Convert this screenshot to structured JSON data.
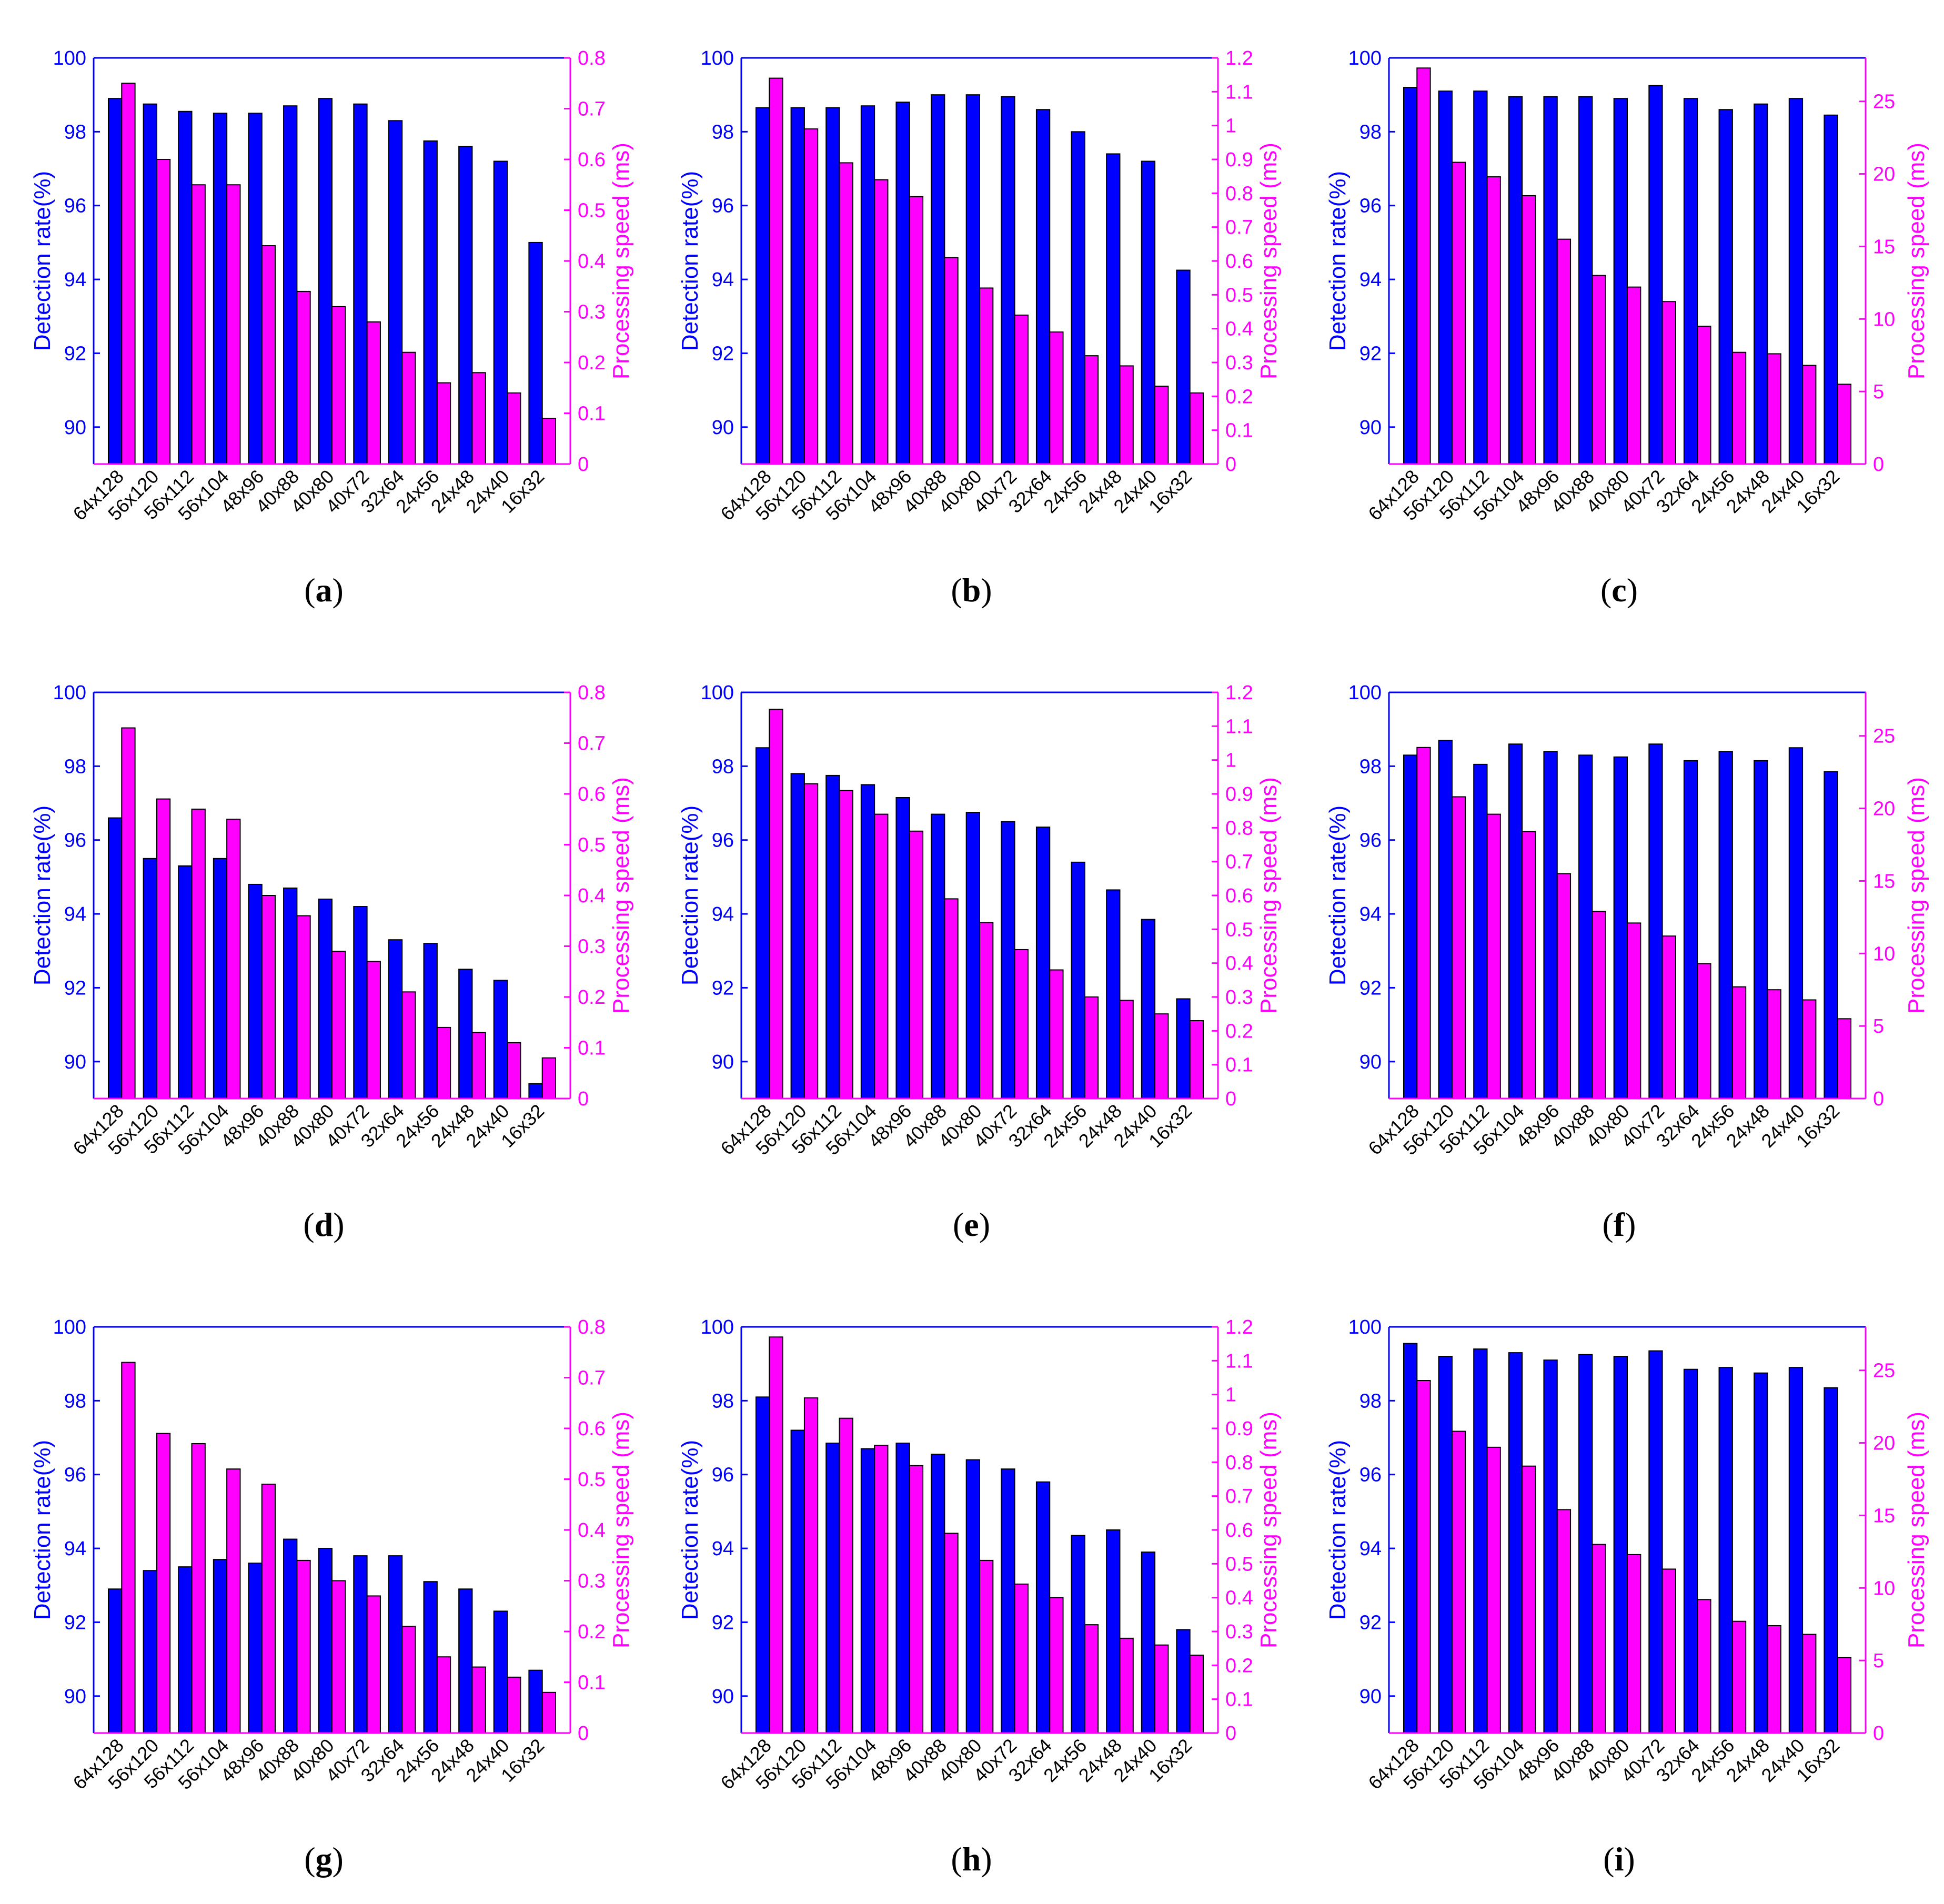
{
  "colors": {
    "detection": "#0000ff",
    "speed": "#ff00ff",
    "axis_left": "#0000ff",
    "axis_right": "#ff00ff"
  },
  "chart_data": [
    {
      "id": "a",
      "type": "bar",
      "panel_label": "a",
      "categories": [
        "64x128",
        "56x120",
        "56x112",
        "56x104",
        "48x96",
        "40x88",
        "40x80",
        "40x72",
        "32x64",
        "24x56",
        "24x48",
        "24x40",
        "16x32"
      ],
      "ylabel": "Detection rate(%)",
      "y2label": "Processing speed (ms)",
      "ylim": [
        89,
        100
      ],
      "y2lim": [
        0,
        0.8
      ],
      "yticks": [
        90,
        92,
        94,
        96,
        98,
        100
      ],
      "y2ticks": [
        0,
        0.1,
        0.2,
        0.3,
        0.4,
        0.5,
        0.6,
        0.7,
        0.8
      ],
      "series": [
        {
          "name": "Detection rate",
          "axis": "left",
          "values": [
            98.9,
            98.75,
            98.55,
            98.5,
            98.5,
            98.7,
            98.9,
            98.75,
            98.3,
            97.75,
            97.6,
            97.2,
            95.0
          ]
        },
        {
          "name": "Processing speed",
          "axis": "right",
          "values": [
            0.75,
            0.6,
            0.55,
            0.55,
            0.43,
            0.34,
            0.31,
            0.28,
            0.22,
            0.16,
            0.18,
            0.14,
            0.09
          ]
        }
      ]
    },
    {
      "id": "b",
      "type": "bar",
      "panel_label": "b",
      "categories": [
        "64x128",
        "56x120",
        "56x112",
        "56x104",
        "48x96",
        "40x88",
        "40x80",
        "40x72",
        "32x64",
        "24x56",
        "24x48",
        "24x40",
        "16x32"
      ],
      "ylabel": "Detection rate(%)",
      "y2label": "Processing speed (ms)",
      "ylim": [
        89,
        100
      ],
      "y2lim": [
        0,
        1.2
      ],
      "yticks": [
        90,
        92,
        94,
        96,
        98,
        100
      ],
      "y2ticks": [
        0,
        0.1,
        0.2,
        0.3,
        0.4,
        0.5,
        0.6,
        0.7,
        0.8,
        0.9,
        1,
        1.1,
        1.2
      ],
      "series": [
        {
          "name": "Detection rate",
          "axis": "left",
          "values": [
            98.65,
            98.65,
            98.65,
            98.7,
            98.8,
            99.0,
            99.0,
            98.95,
            98.6,
            98.0,
            97.4,
            97.2,
            94.25
          ]
        },
        {
          "name": "Processing speed",
          "axis": "right",
          "values": [
            1.14,
            0.99,
            0.89,
            0.84,
            0.79,
            0.61,
            0.52,
            0.44,
            0.39,
            0.32,
            0.29,
            0.23,
            0.21
          ]
        }
      ]
    },
    {
      "id": "c",
      "type": "bar",
      "panel_label": "c",
      "categories": [
        "64x128",
        "56x120",
        "56x112",
        "56x104",
        "48x96",
        "40x88",
        "40x80",
        "40x72",
        "32x64",
        "24x56",
        "24x48",
        "24x40",
        "16x32"
      ],
      "ylabel": "Detection rate(%)",
      "y2label": "Processing speed (ms)",
      "ylim": [
        89,
        100
      ],
      "y2lim": [
        0,
        28
      ],
      "yticks": [
        90,
        92,
        94,
        96,
        98,
        100
      ],
      "y2ticks": [
        0,
        5,
        10,
        15,
        20,
        25
      ],
      "series": [
        {
          "name": "Detection rate",
          "axis": "left",
          "values": [
            99.2,
            99.1,
            99.1,
            98.95,
            98.95,
            98.95,
            98.9,
            99.25,
            98.9,
            98.6,
            98.75,
            98.9,
            98.45
          ]
        },
        {
          "name": "Processing speed",
          "axis": "right",
          "values": [
            27.3,
            20.8,
            19.8,
            18.5,
            15.5,
            13.0,
            12.2,
            11.2,
            9.5,
            7.7,
            7.6,
            6.8,
            5.5
          ]
        }
      ]
    },
    {
      "id": "d",
      "type": "bar",
      "panel_label": "d",
      "categories": [
        "64x128",
        "56x120",
        "56x112",
        "56x104",
        "48x96",
        "40x88",
        "40x80",
        "40x72",
        "32x64",
        "24x56",
        "24x48",
        "24x40",
        "16x32"
      ],
      "ylabel": "Detection rate(%)",
      "y2label": "Processing speed (ms)",
      "ylim": [
        89,
        100
      ],
      "y2lim": [
        0,
        0.8
      ],
      "yticks": [
        90,
        92,
        94,
        96,
        98,
        100
      ],
      "y2ticks": [
        0,
        0.1,
        0.2,
        0.3,
        0.4,
        0.5,
        0.6,
        0.7,
        0.8
      ],
      "series": [
        {
          "name": "Detection rate",
          "axis": "left",
          "values": [
            96.6,
            95.5,
            95.3,
            95.5,
            94.8,
            94.7,
            94.4,
            94.2,
            93.3,
            93.2,
            92.5,
            92.2,
            89.4
          ]
        },
        {
          "name": "Processing speed",
          "axis": "right",
          "values": [
            0.73,
            0.59,
            0.57,
            0.55,
            0.4,
            0.36,
            0.29,
            0.27,
            0.21,
            0.14,
            0.13,
            0.11,
            0.08
          ]
        }
      ]
    },
    {
      "id": "e",
      "type": "bar",
      "panel_label": "e",
      "categories": [
        "64x128",
        "56x120",
        "56x112",
        "56x104",
        "48x96",
        "40x88",
        "40x80",
        "40x72",
        "32x64",
        "24x56",
        "24x48",
        "24x40",
        "16x32"
      ],
      "ylabel": "Detection rate(%)",
      "y2label": "Processing speed (ms)",
      "ylim": [
        89,
        100
      ],
      "y2lim": [
        0,
        1.2
      ],
      "yticks": [
        90,
        92,
        94,
        96,
        98,
        100
      ],
      "y2ticks": [
        0,
        0.1,
        0.2,
        0.3,
        0.4,
        0.5,
        0.6,
        0.7,
        0.8,
        0.9,
        1,
        1.1,
        1.2
      ],
      "series": [
        {
          "name": "Detection rate",
          "axis": "left",
          "values": [
            98.5,
            97.8,
            97.75,
            97.5,
            97.15,
            96.7,
            96.75,
            96.5,
            96.35,
            95.4,
            94.65,
            93.85,
            91.7
          ]
        },
        {
          "name": "Processing speed",
          "axis": "right",
          "values": [
            1.15,
            0.93,
            0.91,
            0.84,
            0.79,
            0.59,
            0.52,
            0.44,
            0.38,
            0.3,
            0.29,
            0.25,
            0.23
          ]
        }
      ]
    },
    {
      "id": "f",
      "type": "bar",
      "panel_label": "f",
      "categories": [
        "64x128",
        "56x120",
        "56x112",
        "56x104",
        "48x96",
        "40x88",
        "40x80",
        "40x72",
        "32x64",
        "24x56",
        "24x48",
        "24x40",
        "16x32"
      ],
      "ylabel": "Detection rate(%)",
      "y2label": "Processing speed (ms)",
      "ylim": [
        89,
        100
      ],
      "y2lim": [
        0,
        28
      ],
      "yticks": [
        90,
        92,
        94,
        96,
        98,
        100
      ],
      "y2ticks": [
        0,
        5,
        10,
        15,
        20,
        25
      ],
      "series": [
        {
          "name": "Detection rate",
          "axis": "left",
          "values": [
            98.3,
            98.7,
            98.05,
            98.6,
            98.4,
            98.3,
            98.25,
            98.6,
            98.15,
            98.4,
            98.15,
            98.5,
            97.85
          ]
        },
        {
          "name": "Processing speed",
          "axis": "right",
          "values": [
            24.2,
            20.8,
            19.6,
            18.4,
            15.5,
            12.9,
            12.1,
            11.2,
            9.3,
            7.7,
            7.5,
            6.8,
            5.5
          ]
        }
      ]
    },
    {
      "id": "g",
      "type": "bar",
      "panel_label": "g",
      "categories": [
        "64x128",
        "56x120",
        "56x112",
        "56x104",
        "48x96",
        "40x88",
        "40x80",
        "40x72",
        "32x64",
        "24x56",
        "24x48",
        "24x40",
        "16x32"
      ],
      "ylabel": "Detection rate(%)",
      "y2label": "Processing speed (ms)",
      "ylim": [
        89,
        100
      ],
      "y2lim": [
        0,
        0.8
      ],
      "yticks": [
        90,
        92,
        94,
        96,
        98,
        100
      ],
      "y2ticks": [
        0,
        0.1,
        0.2,
        0.3,
        0.4,
        0.5,
        0.6,
        0.7,
        0.8
      ],
      "series": [
        {
          "name": "Detection rate",
          "axis": "left",
          "values": [
            92.9,
            93.4,
            93.5,
            93.7,
            93.6,
            94.25,
            94.0,
            93.8,
            93.8,
            93.1,
            92.9,
            92.3,
            90.7
          ]
        },
        {
          "name": "Processing speed",
          "axis": "right",
          "values": [
            0.73,
            0.59,
            0.57,
            0.52,
            0.49,
            0.34,
            0.3,
            0.27,
            0.21,
            0.15,
            0.13,
            0.11,
            0.08
          ]
        }
      ]
    },
    {
      "id": "h",
      "type": "bar",
      "panel_label": "h",
      "categories": [
        "64x128",
        "56x120",
        "56x112",
        "56x104",
        "48x96",
        "40x88",
        "40x80",
        "40x72",
        "32x64",
        "24x56",
        "24x48",
        "24x40",
        "16x32"
      ],
      "ylabel": "Detection rate(%)",
      "y2label": "Processing speed (ms)",
      "ylim": [
        89,
        100
      ],
      "y2lim": [
        0,
        1.2
      ],
      "yticks": [
        90,
        92,
        94,
        96,
        98,
        100
      ],
      "y2ticks": [
        0,
        0.1,
        0.2,
        0.3,
        0.4,
        0.5,
        0.6,
        0.7,
        0.8,
        0.9,
        1,
        1.1,
        1.2
      ],
      "series": [
        {
          "name": "Detection rate",
          "axis": "left",
          "values": [
            98.1,
            97.2,
            96.85,
            96.7,
            96.85,
            96.55,
            96.4,
            96.15,
            95.8,
            94.35,
            94.5,
            93.9,
            91.8
          ]
        },
        {
          "name": "Processing speed",
          "axis": "right",
          "values": [
            1.17,
            0.99,
            0.93,
            0.85,
            0.79,
            0.59,
            0.51,
            0.44,
            0.4,
            0.32,
            0.28,
            0.26,
            0.23
          ]
        }
      ]
    },
    {
      "id": "i",
      "type": "bar",
      "panel_label": "i",
      "categories": [
        "64x128",
        "56x120",
        "56x112",
        "56x104",
        "48x96",
        "40x88",
        "40x80",
        "40x72",
        "32x64",
        "24x56",
        "24x48",
        "24x40",
        "16x32"
      ],
      "ylabel": "Detection rate(%)",
      "y2label": "Processing speed (ms)",
      "ylim": [
        89,
        100
      ],
      "y2lim": [
        0,
        28
      ],
      "yticks": [
        90,
        92,
        94,
        96,
        98,
        100
      ],
      "y2ticks": [
        0,
        5,
        10,
        15,
        20,
        25
      ],
      "series": [
        {
          "name": "Detection rate",
          "axis": "left",
          "values": [
            99.55,
            99.2,
            99.4,
            99.3,
            99.1,
            99.25,
            99.2,
            99.35,
            98.85,
            98.9,
            98.75,
            98.9,
            98.35
          ]
        },
        {
          "name": "Processing speed",
          "axis": "right",
          "values": [
            24.3,
            20.8,
            19.7,
            18.4,
            15.4,
            13.0,
            12.3,
            11.3,
            9.2,
            7.7,
            7.4,
            6.8,
            5.2
          ]
        }
      ]
    }
  ]
}
